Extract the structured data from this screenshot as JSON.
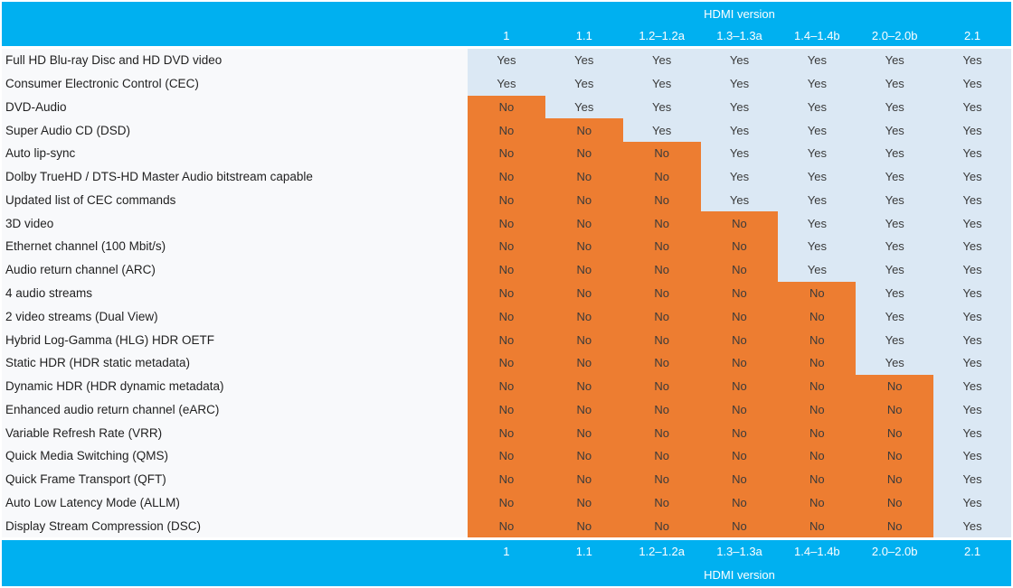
{
  "chart_data": {
    "type": "table",
    "title": "HDMI version",
    "columns": [
      "1",
      "1.1",
      "1.2–1.2a",
      "1.3–1.3a",
      "1.4–1.4b",
      "2.0–2.0b",
      "2.1"
    ],
    "yes_label": "Yes",
    "no_label": "No",
    "rows": [
      {
        "label": "Full HD Blu-ray Disc and HD DVD video",
        "values": [
          "Yes",
          "Yes",
          "Yes",
          "Yes",
          "Yes",
          "Yes",
          "Yes"
        ]
      },
      {
        "label": "Consumer Electronic Control (CEC)",
        "values": [
          "Yes",
          "Yes",
          "Yes",
          "Yes",
          "Yes",
          "Yes",
          "Yes"
        ]
      },
      {
        "label": "DVD-Audio",
        "values": [
          "No",
          "Yes",
          "Yes",
          "Yes",
          "Yes",
          "Yes",
          "Yes"
        ]
      },
      {
        "label": "Super Audio CD (DSD)",
        "values": [
          "No",
          "No",
          "Yes",
          "Yes",
          "Yes",
          "Yes",
          "Yes"
        ]
      },
      {
        "label": "Auto lip-sync",
        "values": [
          "No",
          "No",
          "No",
          "Yes",
          "Yes",
          "Yes",
          "Yes"
        ]
      },
      {
        "label": "Dolby TrueHD / DTS-HD Master Audio bitstream capable",
        "values": [
          "No",
          "No",
          "No",
          "Yes",
          "Yes",
          "Yes",
          "Yes"
        ]
      },
      {
        "label": "Updated list of CEC commands",
        "values": [
          "No",
          "No",
          "No",
          "Yes",
          "Yes",
          "Yes",
          "Yes"
        ]
      },
      {
        "label": "3D video",
        "values": [
          "No",
          "No",
          "No",
          "No",
          "Yes",
          "Yes",
          "Yes"
        ]
      },
      {
        "label": "Ethernet channel (100 Mbit/s)",
        "values": [
          "No",
          "No",
          "No",
          "No",
          "Yes",
          "Yes",
          "Yes"
        ]
      },
      {
        "label": "Audio return channel (ARC)",
        "values": [
          "No",
          "No",
          "No",
          "No",
          "Yes",
          "Yes",
          "Yes"
        ]
      },
      {
        "label": "4 audio streams",
        "values": [
          "No",
          "No",
          "No",
          "No",
          "No",
          "Yes",
          "Yes"
        ]
      },
      {
        "label": "2 video streams (Dual View)",
        "values": [
          "No",
          "No",
          "No",
          "No",
          "No",
          "Yes",
          "Yes"
        ]
      },
      {
        "label": "Hybrid Log-Gamma (HLG) HDR OETF",
        "values": [
          "No",
          "No",
          "No",
          "No",
          "No",
          "Yes",
          "Yes"
        ]
      },
      {
        "label": "Static HDR (HDR static metadata)",
        "values": [
          "No",
          "No",
          "No",
          "No",
          "No",
          "Yes",
          "Yes"
        ]
      },
      {
        "label": "Dynamic HDR (HDR dynamic metadata)",
        "values": [
          "No",
          "No",
          "No",
          "No",
          "No",
          "No",
          "Yes"
        ]
      },
      {
        "label": "Enhanced audio return channel (eARC)",
        "values": [
          "No",
          "No",
          "No",
          "No",
          "No",
          "No",
          "Yes"
        ]
      },
      {
        "label": "Variable Refresh Rate (VRR)",
        "values": [
          "No",
          "No",
          "No",
          "No",
          "No",
          "No",
          "Yes"
        ]
      },
      {
        "label": "Quick Media Switching (QMS)",
        "values": [
          "No",
          "No",
          "No",
          "No",
          "No",
          "No",
          "Yes"
        ]
      },
      {
        "label": "Quick Frame Transport (QFT)",
        "values": [
          "No",
          "No",
          "No",
          "No",
          "No",
          "No",
          "Yes"
        ]
      },
      {
        "label": "Auto Low Latency Mode (ALLM)",
        "values": [
          "No",
          "No",
          "No",
          "No",
          "No",
          "No",
          "Yes"
        ]
      },
      {
        "label": "Display Stream Compression (DSC)",
        "values": [
          "No",
          "No",
          "No",
          "No",
          "No",
          "No",
          "Yes"
        ]
      }
    ]
  },
  "colors": {
    "header_bg": "#00B0F0",
    "header_text": "#FFFFFF",
    "yes_bg": "#DBE8F4",
    "no_bg": "#ED7D31",
    "label_bg": "#F8F9FB",
    "label_text": "#1F1F1F",
    "cell_text": "#3A3A3A"
  }
}
